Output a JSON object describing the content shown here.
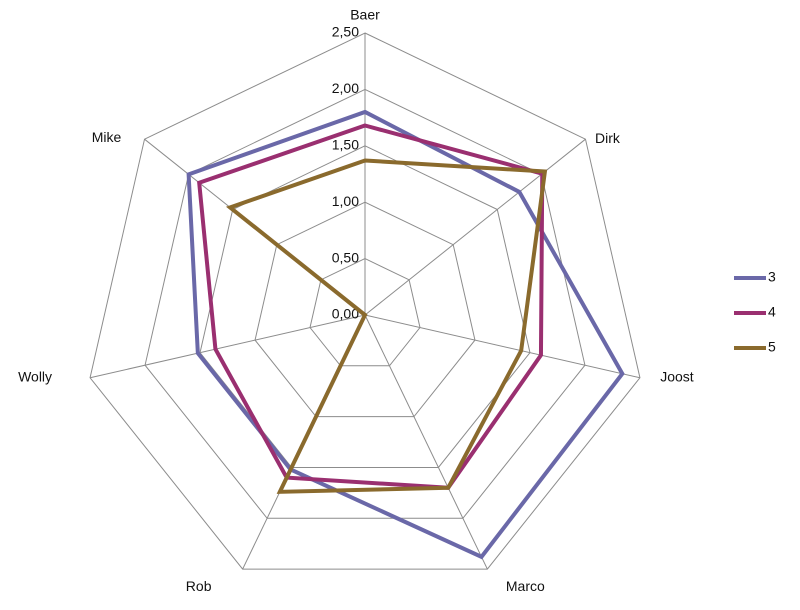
{
  "chart_data": {
    "type": "radar",
    "categories": [
      "Baer",
      "Dirk",
      "Joost",
      "Marco",
      "Rob",
      "Wolly",
      "Mike"
    ],
    "rlim": [
      0,
      2.5
    ],
    "ticks": [
      "0,00",
      "0,50",
      "1,00",
      "1,50",
      "2,00",
      "2,50"
    ],
    "tick_values": [
      0,
      0.5,
      1.0,
      1.5,
      2.0,
      2.5
    ],
    "grid": true,
    "legend_position": "right",
    "series": [
      {
        "name": "3",
        "color": "#6a68a8",
        "values": [
          1.8,
          1.75,
          2.34,
          2.38,
          1.52,
          1.52,
          2.0
        ]
      },
      {
        "name": "4",
        "color": "#9a2f70",
        "values": [
          1.68,
          2.01,
          1.6,
          1.7,
          1.6,
          1.36,
          1.88
        ]
      },
      {
        "name": "5",
        "color": "#8a6a2d",
        "values": [
          1.37,
          2.04,
          1.42,
          1.7,
          1.74,
          0.0,
          1.53
        ]
      }
    ]
  }
}
